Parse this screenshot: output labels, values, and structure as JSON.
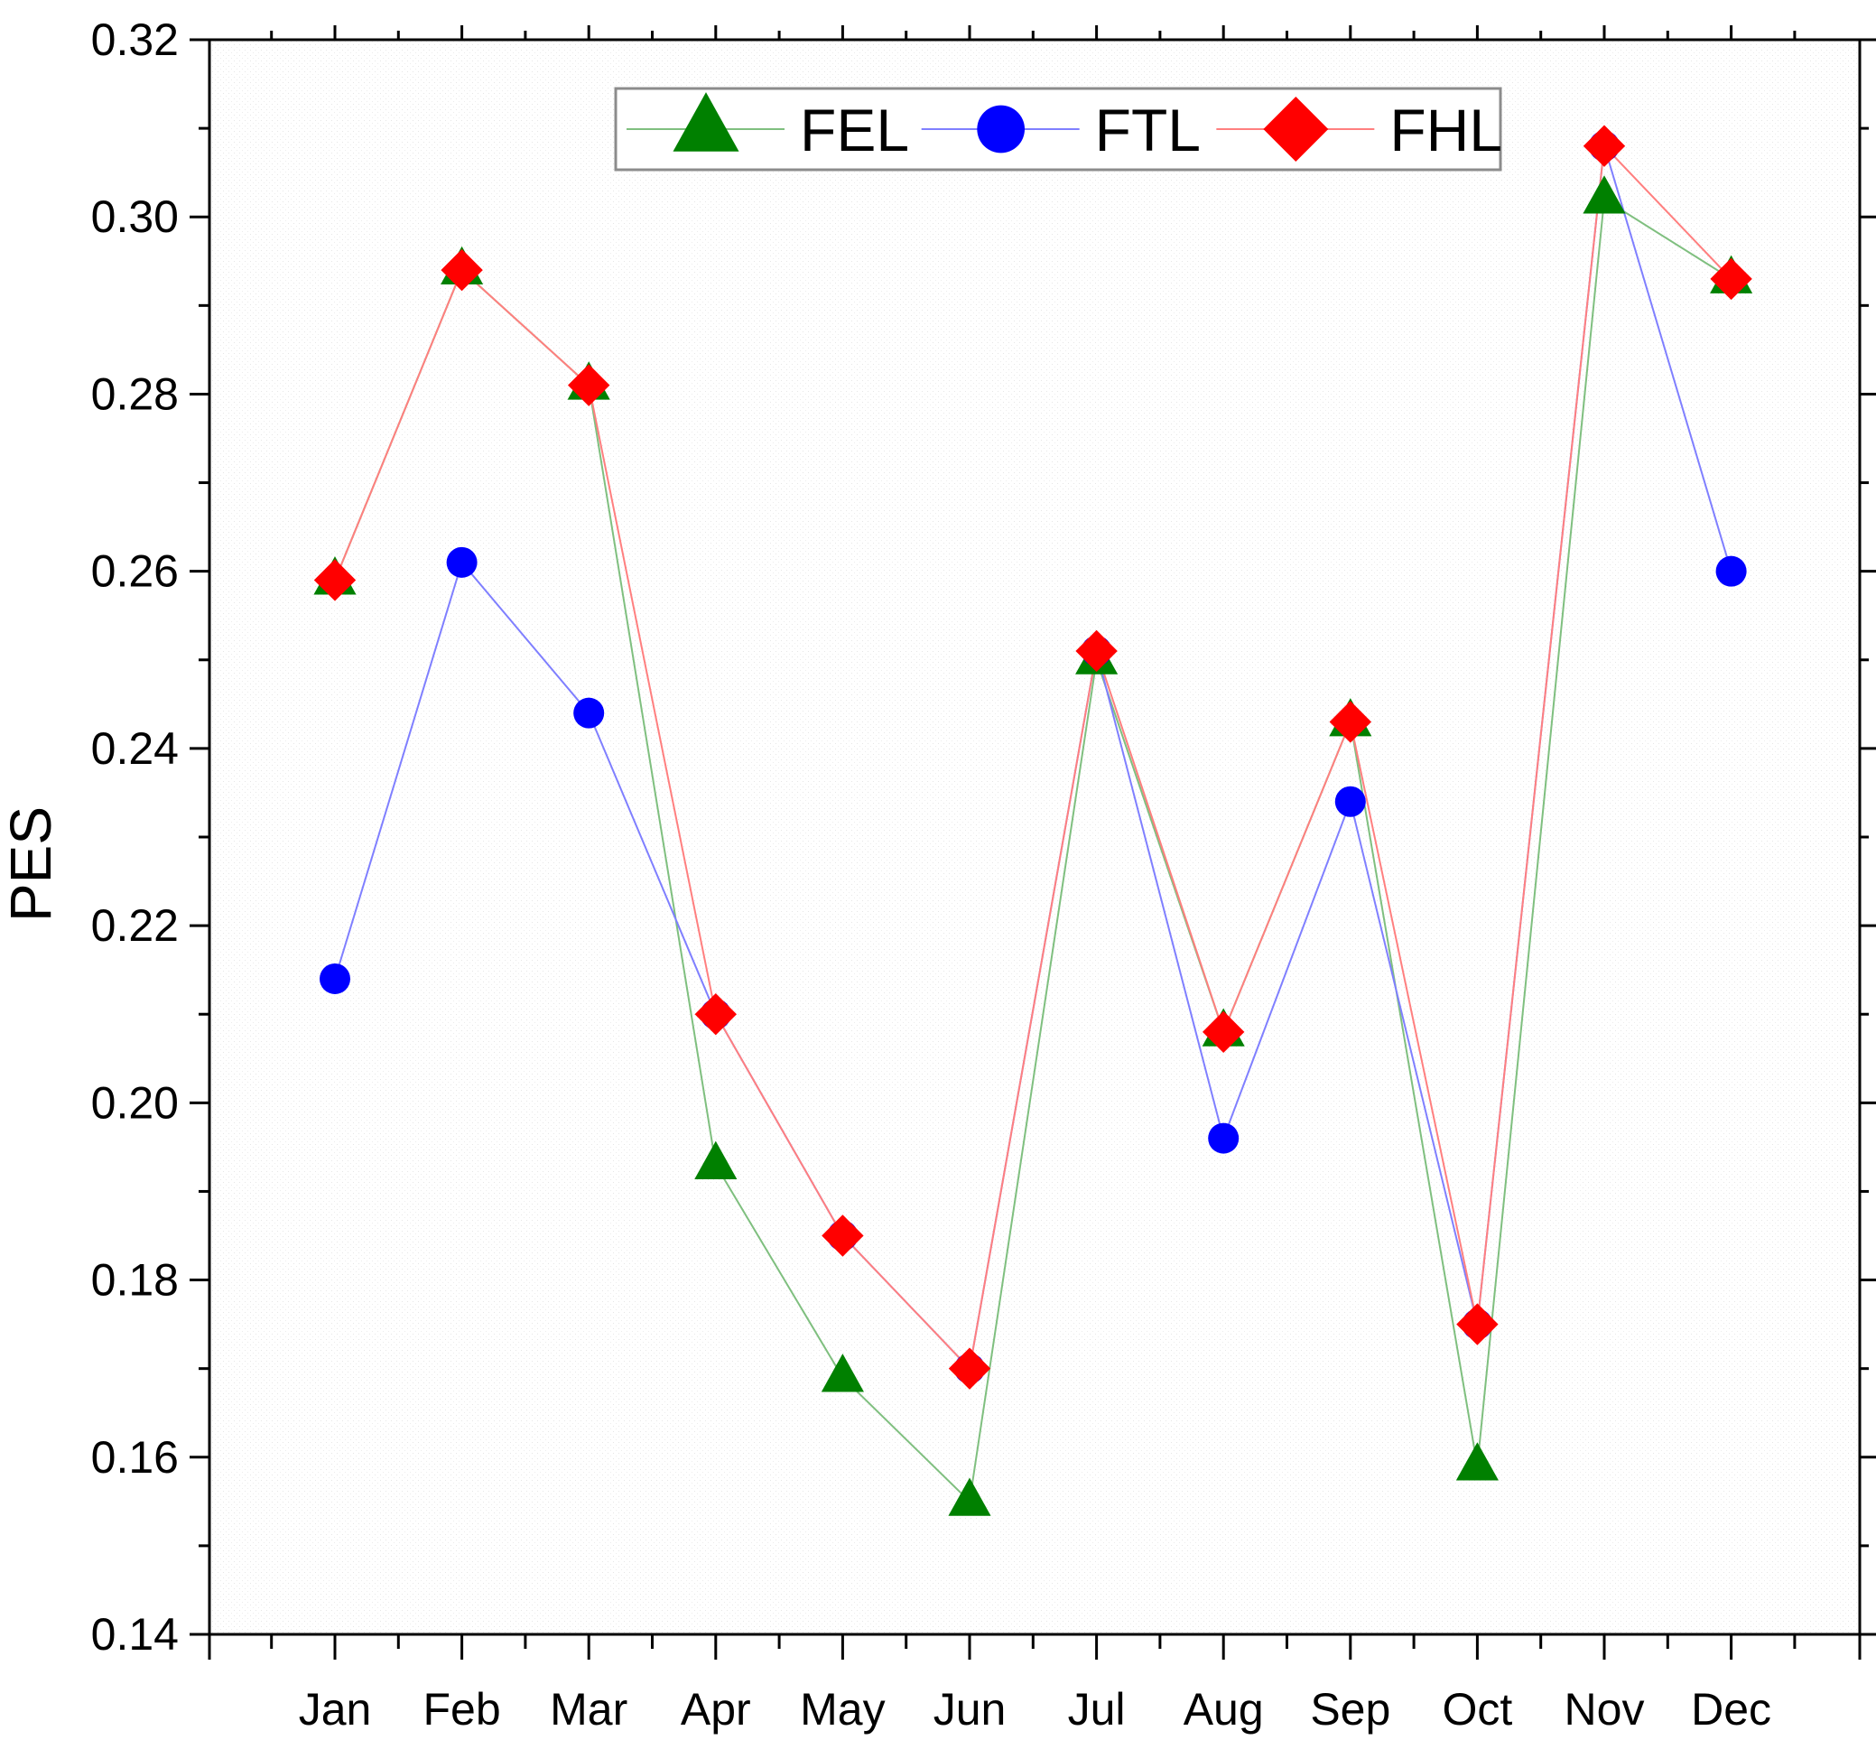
{
  "chart_data": {
    "type": "line",
    "title": "",
    "xlabel": "",
    "ylabel": "PES",
    "categories": [
      "Jan",
      "Feb",
      "Mar",
      "Apr",
      "May",
      "Jun",
      "Jul",
      "Aug",
      "Sep",
      "Oct",
      "Nov",
      "Dec"
    ],
    "ylim": [
      0.14,
      0.32
    ],
    "yticks": [
      0.14,
      0.16,
      0.18,
      0.2,
      0.22,
      0.24,
      0.26,
      0.28,
      0.3,
      0.32
    ],
    "ytick_labels": [
      "0.14",
      "0.16",
      "0.18",
      "0.20",
      "0.22",
      "0.24",
      "0.26",
      "0.28",
      "0.30",
      "0.32"
    ],
    "grid": false,
    "legend_position": "top-center",
    "series": [
      {
        "name": "FEL",
        "marker": "triangle",
        "color": "#008000",
        "line_color": "#7fbf7f",
        "values": [
          0.259,
          0.294,
          0.281,
          0.193,
          0.169,
          0.155,
          0.25,
          0.208,
          0.243,
          0.159,
          0.302,
          0.293
        ]
      },
      {
        "name": "FTL",
        "marker": "circle",
        "color": "#0000ff",
        "line_color": "#7f7fff",
        "values": [
          0.214,
          0.261,
          0.244,
          0.21,
          0.185,
          0.17,
          0.251,
          0.196,
          0.234,
          0.175,
          0.308,
          0.26
        ]
      },
      {
        "name": "FHL",
        "marker": "diamond",
        "color": "#ff0000",
        "line_color": "#ff7f7f",
        "values": [
          0.259,
          0.294,
          0.281,
          0.21,
          0.185,
          0.17,
          0.251,
          0.208,
          0.243,
          0.175,
          0.308,
          0.293
        ]
      }
    ]
  }
}
